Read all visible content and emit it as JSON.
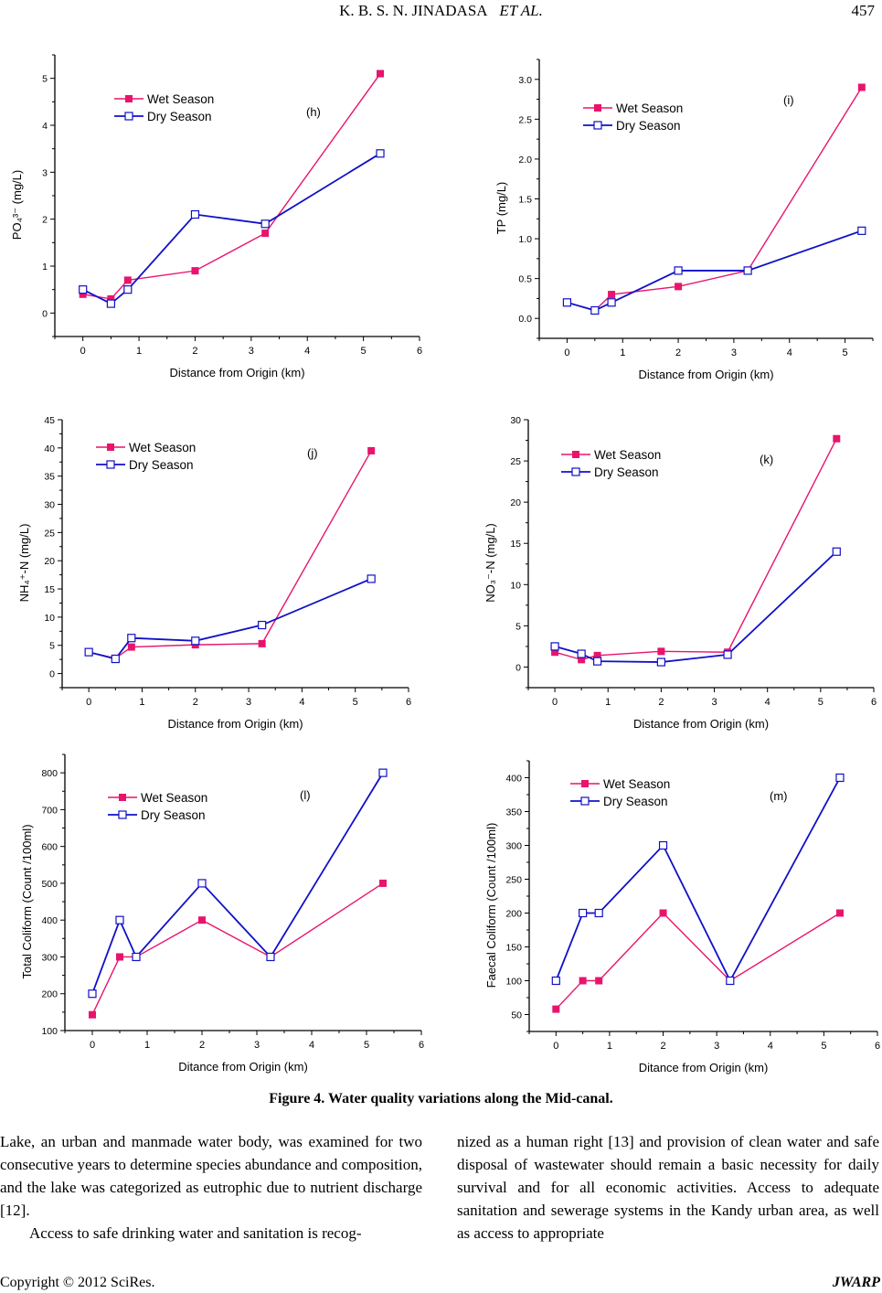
{
  "header": {
    "authors": "K. B. S. N. JINADASA",
    "et_al": "ET AL.",
    "page_number": "457"
  },
  "figure_caption": "Figure 4. Water quality variations along the Mid-canal.",
  "colors": {
    "wet": "#e8146c",
    "dry": "#1010c8",
    "axis": "#000000"
  },
  "chart_data": [
    {
      "id": "h",
      "type": "line",
      "panel_label": "(h)",
      "xlabel": "Distance from Origin (km)",
      "ylabel": "PO₄³⁻ (mg/L)",
      "xlim": [
        -0.5,
        6
      ],
      "ylim": [
        -0.5,
        5.5
      ],
      "xticks": [
        0,
        1,
        2,
        3,
        4,
        5,
        6
      ],
      "yticks": [
        0,
        1,
        2,
        3,
        4,
        5
      ],
      "ytick_labels": [
        "0",
        "1",
        "2",
        "3",
        "4",
        "5"
      ],
      "legend_position": "top-left",
      "grid": false,
      "x": [
        0,
        0.5,
        0.8,
        2,
        3.25,
        5.3
      ],
      "series": [
        {
          "name": "Wet Season",
          "marker": "filled-square",
          "values": [
            0.4,
            0.3,
            0.7,
            0.9,
            1.7,
            5.1
          ]
        },
        {
          "name": "Dry Season",
          "marker": "open-square",
          "values": [
            0.5,
            0.2,
            0.5,
            2.1,
            1.9,
            3.4
          ]
        }
      ]
    },
    {
      "id": "i",
      "type": "line",
      "panel_label": "(i)",
      "xlabel": "Distance from Origin (km)",
      "ylabel": "TP (mg/L)",
      "xlim": [
        -0.5,
        5.5
      ],
      "ylim": [
        -0.25,
        3.25
      ],
      "xticks": [
        0,
        1,
        2,
        3,
        4,
        5
      ],
      "yticks": [
        0,
        0.5,
        1,
        1.5,
        2,
        2.5,
        3
      ],
      "ytick_labels": [
        "0.0",
        "0.5",
        "1.0",
        "1.5",
        "2.0",
        "2.5",
        "3.0"
      ],
      "legend_position": "top-left",
      "grid": false,
      "x": [
        0,
        0.5,
        0.8,
        2,
        3.25,
        5.3
      ],
      "series": [
        {
          "name": "Wet Season",
          "marker": "filled-square",
          "values": [
            0.2,
            0.1,
            0.3,
            0.4,
            0.6,
            2.9
          ]
        },
        {
          "name": "Dry Season",
          "marker": "open-square",
          "values": [
            0.2,
            0.1,
            0.2,
            0.6,
            0.6,
            1.1
          ]
        }
      ]
    },
    {
      "id": "j",
      "type": "line",
      "panel_label": "(j)",
      "xlabel": "Distance from Origin (km)",
      "ylabel": "NH₄⁺-N (mg/L)",
      "xlim": [
        -0.5,
        6
      ],
      "ylim": [
        -2.5,
        45
      ],
      "xticks": [
        0,
        1,
        2,
        3,
        4,
        5,
        6
      ],
      "yticks": [
        0,
        5,
        10,
        15,
        20,
        25,
        30,
        35,
        40,
        45
      ],
      "ytick_labels": [
        "0",
        "5",
        "10",
        "15",
        "20",
        "25",
        "30",
        "35",
        "40",
        "45"
      ],
      "legend_position": "top-left",
      "grid": false,
      "x": [
        0,
        0.5,
        0.8,
        2,
        3.25,
        5.3
      ],
      "series": [
        {
          "name": "Wet Season",
          "marker": "filled-square",
          "values": [
            3.8,
            2.7,
            4.7,
            5.1,
            5.3,
            39.5
          ]
        },
        {
          "name": "Dry Season",
          "marker": "open-square",
          "values": [
            3.8,
            2.6,
            6.3,
            5.8,
            8.6,
            16.8
          ]
        }
      ]
    },
    {
      "id": "k",
      "type": "line",
      "panel_label": "(k)",
      "xlabel": "Distance from Origin (km)",
      "ylabel": "NO₃⁻-N (mg/L)",
      "xlim": [
        -0.5,
        6
      ],
      "ylim": [
        -2.5,
        30
      ],
      "xticks": [
        0,
        1,
        2,
        3,
        4,
        5,
        6
      ],
      "yticks": [
        0,
        5,
        10,
        15,
        20,
        25,
        30
      ],
      "ytick_labels": [
        "0",
        "5",
        "10",
        "15",
        "20",
        "25",
        "30"
      ],
      "legend_position": "top-left",
      "grid": false,
      "x": [
        0,
        0.5,
        0.8,
        2,
        3.25,
        5.3
      ],
      "series": [
        {
          "name": "Wet Season",
          "marker": "filled-square",
          "values": [
            1.8,
            0.9,
            1.4,
            1.9,
            1.8,
            27.7
          ]
        },
        {
          "name": "Dry Season",
          "marker": "open-square",
          "values": [
            2.5,
            1.6,
            0.7,
            0.6,
            1.5,
            14.0
          ]
        }
      ]
    },
    {
      "id": "l",
      "type": "line",
      "panel_label": "(l)",
      "xlabel": "Ditance from Origin (km)",
      "ylabel": "Total   Coliform (Count /100ml)",
      "xlim": [
        -0.5,
        6
      ],
      "ylim": [
        100,
        850
      ],
      "xticks": [
        0,
        1,
        2,
        3,
        4,
        5,
        6
      ],
      "yticks": [
        100,
        200,
        300,
        400,
        500,
        600,
        700,
        800
      ],
      "ytick_labels": [
        "100",
        "200",
        "300",
        "400",
        "500",
        "600",
        "700",
        "800"
      ],
      "legend_position": "top-left",
      "grid": false,
      "x": [
        0,
        0.5,
        0.8,
        2,
        3.25,
        5.3
      ],
      "series": [
        {
          "name": "Wet Season",
          "marker": "filled-square",
          "values": [
            143,
            300,
            300,
            400,
            300,
            500
          ]
        },
        {
          "name": "Dry Season",
          "marker": "open-square",
          "values": [
            200,
            400,
            300,
            500,
            300,
            800
          ]
        }
      ]
    },
    {
      "id": "m",
      "type": "line",
      "panel_label": "(m)",
      "xlabel": "Ditance from Origin (km)",
      "ylabel": "Faecal   Coliform (Count /100ml)",
      "xlim": [
        -0.5,
        6
      ],
      "ylim": [
        25,
        425
      ],
      "xticks": [
        0,
        1,
        2,
        3,
        4,
        5,
        6
      ],
      "yticks": [
        50,
        100,
        150,
        200,
        250,
        300,
        350,
        400
      ],
      "ytick_labels": [
        "50",
        "100",
        "150",
        "200",
        "250",
        "300",
        "350",
        "400"
      ],
      "legend_position": "top-left",
      "grid": false,
      "x": [
        0,
        0.5,
        0.8,
        2,
        3.25,
        5.3
      ],
      "series": [
        {
          "name": "Wet Season",
          "marker": "filled-square",
          "values": [
            58,
            100,
            100,
            200,
            100,
            200
          ]
        },
        {
          "name": "Dry Season",
          "marker": "open-square",
          "values": [
            100,
            200,
            200,
            300,
            100,
            400
          ]
        }
      ]
    }
  ],
  "body_text": {
    "left_col": [
      "Lake, an urban and manmade water body, was examined for two consecutive years to determine species abundance and composition, and the lake was categorized as eutrophic due to nutrient discharge [12].",
      "Access to safe drinking water and sanitation is recog-"
    ],
    "right_col": [
      "nized as a human right [13] and provision of clean water and safe disposal of wastewater should remain a basic necessity for daily survival and for all economic activities. Access to adequate sanitation and sewerage systems in the Kandy urban area, as well as access to appropriate"
    ]
  },
  "footer": {
    "copyright": "Copyright © 2012 SciRes.",
    "journal": "JWARP"
  }
}
